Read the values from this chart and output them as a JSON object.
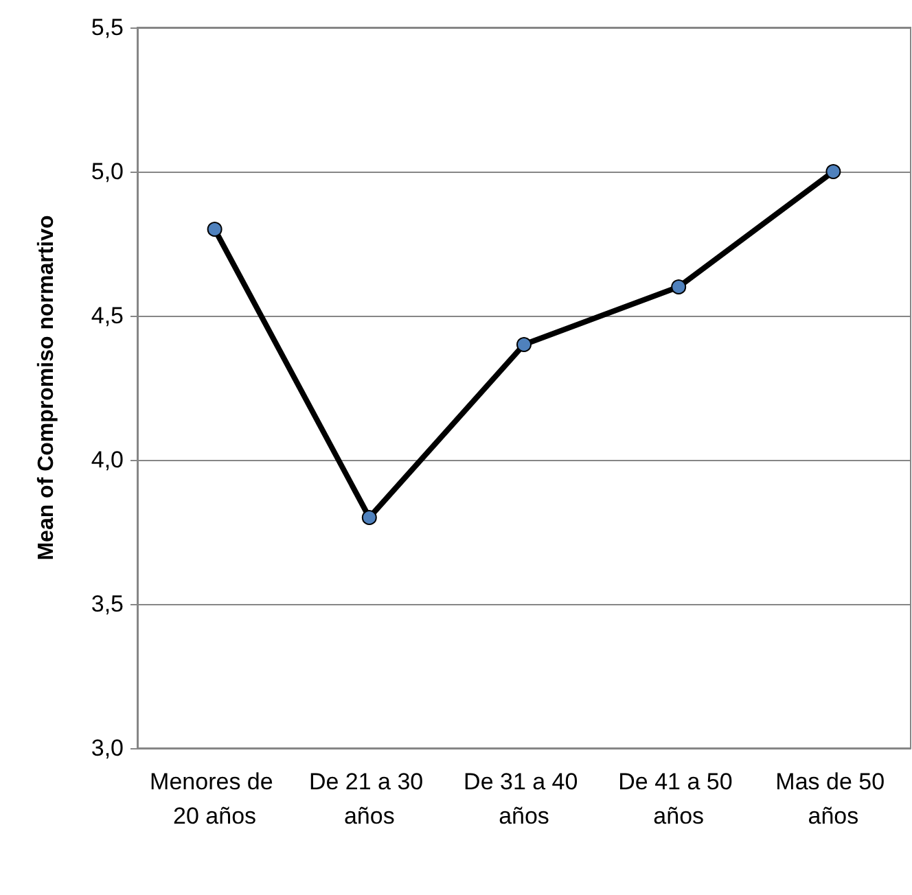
{
  "chart_data": {
    "type": "line",
    "ylabel": "Mean of Compromiso normartivo",
    "categories": [
      "Menores de 20 años",
      "De 21 a 30 años",
      "De 31 a 40 años",
      "De 41 a 50 años",
      "Mas de 50 años"
    ],
    "series": [
      {
        "color": "#000000",
        "colors": [
          "#4f81bd",
          "#4f81bd",
          "#4f81bd",
          "#4f81bd",
          "#4f81bd"
        ],
        "values": [
          4.8,
          3.8,
          4.4,
          4.6,
          5.0
        ]
      }
    ],
    "ylim": [
      3,
      5.5
    ],
    "yticks": [
      {
        "value": 3,
        "label": "3,0"
      },
      {
        "value": 3.5,
        "label": "3,5"
      },
      {
        "value": 4,
        "label": "4,0"
      },
      {
        "value": 4.5,
        "label": "4,5"
      },
      {
        "value": 5,
        "label": "5,0"
      },
      {
        "value": 5.5,
        "label": "5,5"
      }
    ],
    "grid": "y",
    "marker": "circle",
    "line_style": "solid"
  }
}
